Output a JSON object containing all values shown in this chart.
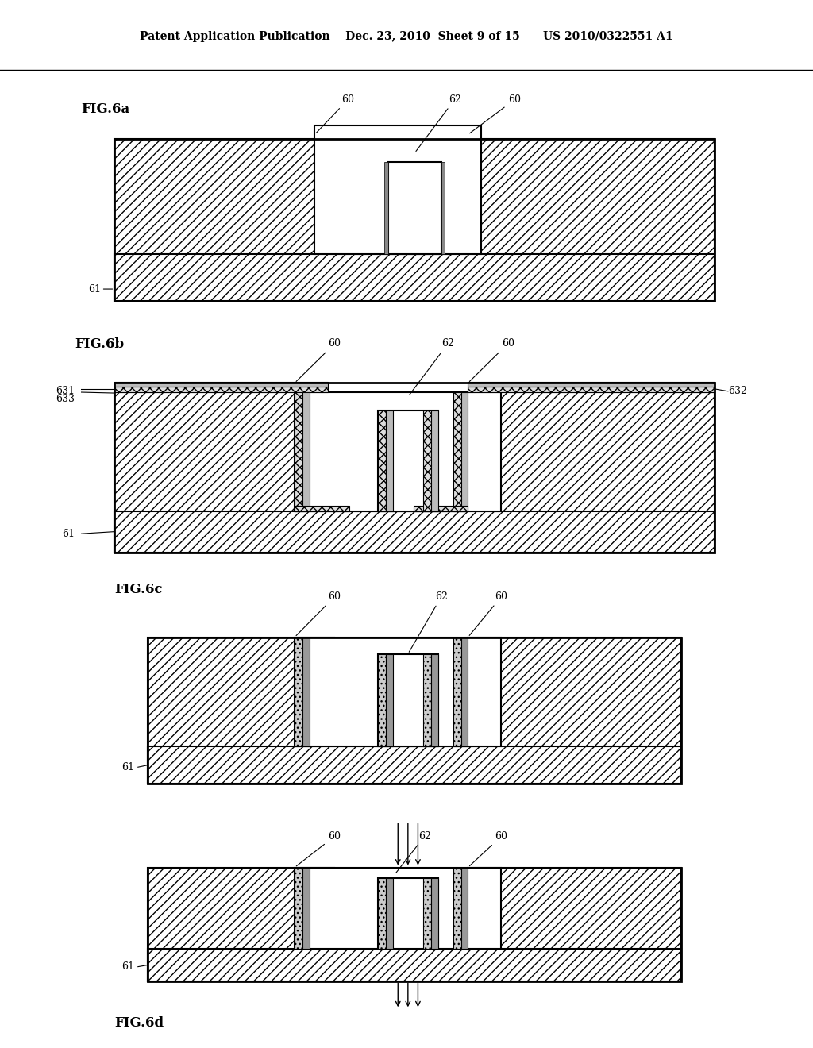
{
  "title_text": "Patent Application Publication    Dec. 23, 2010  Sheet 9 of 15      US 2010/0322551 A1",
  "bg_color": "#ffffff",
  "fig_labels": [
    "FIG.6a",
    "FIG.6b",
    "FIG.6c",
    "FIG.6d"
  ],
  "hatch_pattern": "///",
  "hatch_color": "#000000",
  "line_color": "#000000",
  "fill_color": "#ffffff",
  "gray_fill": "#e8e8e8"
}
